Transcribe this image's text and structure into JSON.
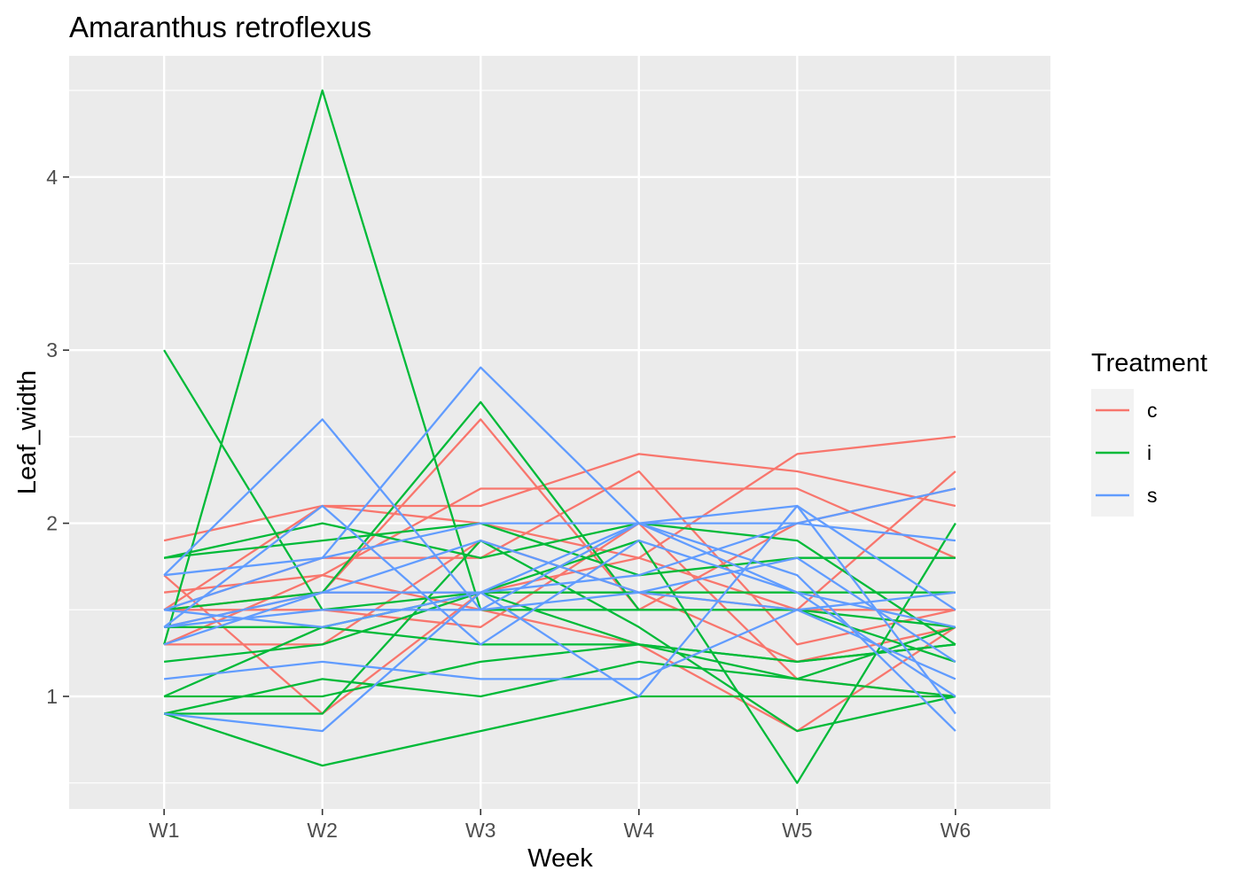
{
  "chart_data": {
    "type": "line",
    "title": "Amaranthus retroflexus",
    "xlabel": "Week",
    "ylabel": "Leaf_width",
    "categories": [
      "W1",
      "W2",
      "W3",
      "W4",
      "W5",
      "W6"
    ],
    "ylim": [
      0.35,
      4.7
    ],
    "y_ticks": [
      1,
      2,
      3,
      4
    ],
    "grid": true,
    "legend": {
      "title": "Treatment",
      "position": "right",
      "entries": [
        {
          "label": "c",
          "color": "#F8766D"
        },
        {
          "label": "i",
          "color": "#00BA38"
        },
        {
          "label": "s",
          "color": "#619CFF"
        }
      ]
    },
    "series": [
      {
        "group": "c",
        "values": [
          1.9,
          2.1,
          2.1,
          2.4,
          2.3,
          2.1
        ]
      },
      {
        "group": "c",
        "values": [
          1.5,
          2.1,
          2.0,
          1.8,
          2.4,
          2.5
        ]
      },
      {
        "group": "c",
        "values": [
          1.6,
          1.7,
          2.2,
          2.2,
          2.2,
          1.8
        ]
      },
      {
        "group": "c",
        "values": [
          1.5,
          1.8,
          1.8,
          2.3,
          1.3,
          1.5
        ]
      },
      {
        "group": "c",
        "values": [
          1.5,
          1.6,
          2.6,
          1.5,
          2.0,
          2.2
        ]
      },
      {
        "group": "c",
        "values": [
          1.4,
          1.6,
          1.6,
          1.6,
          1.5,
          2.3
        ]
      },
      {
        "group": "c",
        "values": [
          1.3,
          1.3,
          1.9,
          1.6,
          1.2,
          1.4
        ]
      },
      {
        "group": "c",
        "values": [
          1.3,
          1.7,
          1.5,
          1.3,
          0.8,
          1.4
        ]
      },
      {
        "group": "c",
        "values": [
          1.5,
          1.5,
          1.4,
          2.0,
          1.1,
          1.0
        ]
      },
      {
        "group": "c",
        "values": [
          1.7,
          0.9,
          1.6,
          1.8,
          1.5,
          1.5
        ]
      },
      {
        "group": "i",
        "values": [
          3.0,
          1.5,
          1.6,
          1.3,
          1.2,
          1.3
        ]
      },
      {
        "group": "i",
        "values": [
          1.3,
          4.5,
          1.5,
          1.5,
          1.5,
          1.2
        ]
      },
      {
        "group": "i",
        "values": [
          1.8,
          1.9,
          2.0,
          1.7,
          1.8,
          1.8
        ]
      },
      {
        "group": "i",
        "values": [
          1.8,
          2.0,
          1.8,
          2.0,
          1.9,
          1.3
        ]
      },
      {
        "group": "i",
        "values": [
          1.5,
          1.6,
          2.7,
          1.5,
          1.5,
          1.4
        ]
      },
      {
        "group": "i",
        "values": [
          1.4,
          1.4,
          1.6,
          1.9,
          0.5,
          2.0
        ]
      },
      {
        "group": "i",
        "values": [
          1.2,
          1.3,
          1.6,
          1.6,
          1.6,
          1.6
        ]
      },
      {
        "group": "i",
        "values": [
          1.0,
          1.0,
          1.2,
          1.3,
          1.2,
          1.3
        ]
      },
      {
        "group": "i",
        "values": [
          1.0,
          1.4,
          1.3,
          1.3,
          1.1,
          1.0
        ]
      },
      {
        "group": "i",
        "values": [
          0.9,
          0.9,
          1.9,
          1.4,
          0.8,
          1.0
        ]
      },
      {
        "group": "i",
        "values": [
          0.9,
          0.6,
          0.8,
          1.0,
          1.0,
          1.0
        ]
      },
      {
        "group": "i",
        "values": [
          0.9,
          1.1,
          1.0,
          1.2,
          1.1,
          1.4
        ]
      },
      {
        "group": "s",
        "values": [
          1.7,
          2.6,
          1.5,
          2.0,
          2.0,
          1.9
        ]
      },
      {
        "group": "s",
        "values": [
          1.7,
          1.8,
          2.9,
          2.0,
          1.7,
          0.8
        ]
      },
      {
        "group": "s",
        "values": [
          1.5,
          1.8,
          2.0,
          2.0,
          2.1,
          1.5
        ]
      },
      {
        "group": "s",
        "values": [
          1.4,
          2.1,
          1.3,
          1.9,
          1.6,
          1.0
        ]
      },
      {
        "group": "s",
        "values": [
          1.4,
          1.6,
          1.6,
          1.7,
          2.0,
          2.2
        ]
      },
      {
        "group": "s",
        "values": [
          1.4,
          1.5,
          1.5,
          1.6,
          1.8,
          1.2
        ]
      },
      {
        "group": "s",
        "values": [
          1.3,
          1.6,
          1.9,
          1.6,
          1.5,
          1.6
        ]
      },
      {
        "group": "s",
        "values": [
          1.1,
          1.2,
          1.1,
          1.1,
          1.5,
          1.1
        ]
      },
      {
        "group": "s",
        "values": [
          0.9,
          0.8,
          1.6,
          1.0,
          2.1,
          0.9
        ]
      },
      {
        "group": "s",
        "values": [
          1.5,
          1.4,
          1.6,
          2.0,
          1.6,
          1.4
        ]
      }
    ]
  }
}
